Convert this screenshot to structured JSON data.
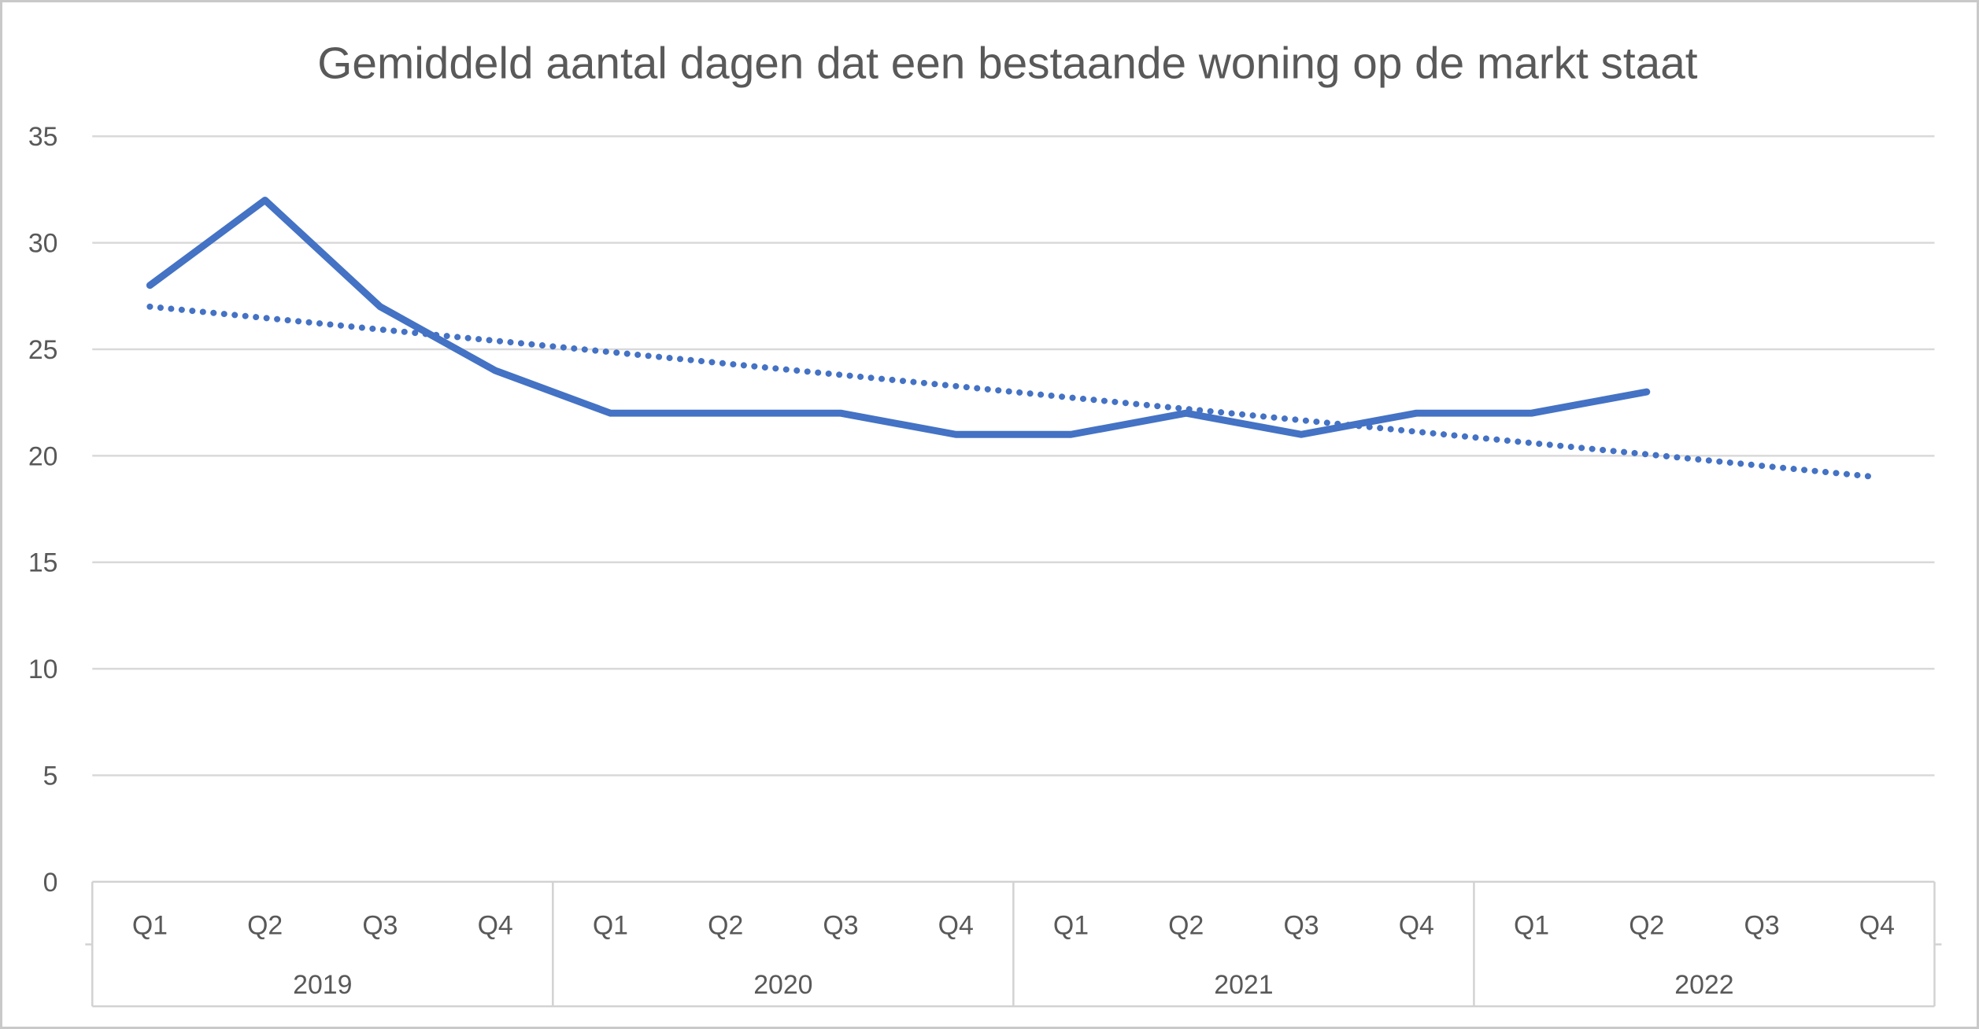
{
  "window": {
    "background": "#ffffff",
    "frame_border_color": "#c9c9c9"
  },
  "chart_data": {
    "type": "line",
    "title": "Gemiddeld aantal dagen dat een bestaande woning op de markt staat",
    "categories": [
      "Q1",
      "Q2",
      "Q3",
      "Q4",
      "Q1",
      "Q2",
      "Q3",
      "Q4",
      "Q1",
      "Q2",
      "Q3",
      "Q4",
      "Q1",
      "Q2",
      "Q3",
      "Q4"
    ],
    "year_groups": [
      "2019",
      "2020",
      "2021",
      "2022"
    ],
    "series": [
      {
        "name": "data",
        "style": "solid",
        "color": "#4472C4",
        "values": [
          28,
          32,
          27,
          24,
          22,
          22,
          22,
          21,
          21,
          22,
          21,
          22,
          22,
          23,
          null,
          null
        ]
      },
      {
        "name": "trend",
        "style": "dotted",
        "color": "#4472C4",
        "values": [
          27,
          26.47,
          25.93,
          25.4,
          24.87,
          24.33,
          23.8,
          23.27,
          22.73,
          22.2,
          21.67,
          21.13,
          20.6,
          20.07,
          19.53,
          19
        ]
      }
    ],
    "xlabel": "",
    "ylabel": "",
    "ylim": [
      0,
      35
    ],
    "yticks": [
      0,
      5,
      10,
      15,
      20,
      25,
      30,
      35
    ],
    "grid": "horizontal",
    "legend": "none",
    "colors": {
      "text": "#595959",
      "gridline": "#d9d9d9",
      "axis_border": "#d2d2d2"
    }
  }
}
